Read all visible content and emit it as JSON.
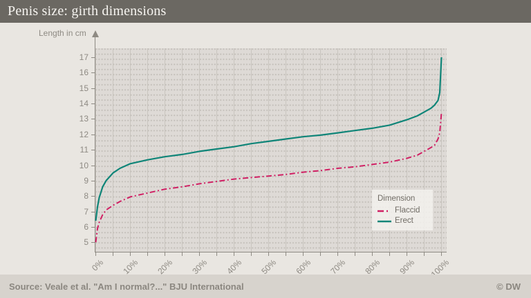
{
  "title": "Penis size: girth dimensions",
  "axes": {
    "y_label": "Length in cm",
    "y_ticks": [
      "17",
      "16",
      "15",
      "14",
      "13",
      "12",
      "11",
      "10",
      "9",
      "8",
      "7",
      "6",
      "5"
    ],
    "x_ticks": [
      "0%",
      "10%",
      "20%",
      "30%",
      "40%",
      "50%",
      "60%",
      "70%",
      "80%",
      "90%",
      "100%"
    ]
  },
  "legend": {
    "title": "Dimension",
    "items": [
      {
        "label": "Flaccid",
        "color": "#d01f63",
        "style": "dash-dot"
      },
      {
        "label": "Erect",
        "color": "#0f8578",
        "style": "solid"
      }
    ]
  },
  "footer": {
    "source": "Source: Veale et al. \"Am I normal?...\" BJU International",
    "credit": "© DW"
  },
  "colors": {
    "title_bar": "#6b6862",
    "page_bg": "#e9e6e1",
    "plot_bg": "#dedad6",
    "footer_bg": "#d7d3cd",
    "axis": "#8e8a83",
    "flaccid": "#d01f63",
    "erect": "#0f8578"
  },
  "chart_data": {
    "type": "line",
    "title": "Penis size: girth dimensions",
    "xlabel": "",
    "ylabel": "Length in cm",
    "x_unit": "%",
    "xlim": [
      0,
      100
    ],
    "ylim": [
      5,
      17
    ],
    "grid": true,
    "legend_position": "right-center",
    "x": [
      0,
      0.5,
      1,
      2,
      3,
      5,
      7,
      10,
      15,
      20,
      25,
      30,
      35,
      40,
      45,
      50,
      55,
      60,
      65,
      70,
      75,
      80,
      85,
      90,
      93,
      95,
      97,
      98,
      99,
      99.5,
      100
    ],
    "series": [
      {
        "name": "Flaccid",
        "color": "#d01f63",
        "style": "dash-dot",
        "values": [
          5.0,
          5.9,
          6.3,
          6.8,
          7.1,
          7.4,
          7.65,
          7.95,
          8.2,
          8.45,
          8.6,
          8.8,
          8.95,
          9.1,
          9.2,
          9.3,
          9.4,
          9.55,
          9.65,
          9.8,
          9.9,
          10.05,
          10.2,
          10.45,
          10.65,
          10.9,
          11.15,
          11.3,
          11.7,
          12.1,
          13.4
        ]
      },
      {
        "name": "Erect",
        "color": "#0f8578",
        "style": "solid",
        "values": [
          6.4,
          7.3,
          7.9,
          8.6,
          9.0,
          9.5,
          9.8,
          10.1,
          10.35,
          10.55,
          10.7,
          10.9,
          11.05,
          11.2,
          11.4,
          11.55,
          11.7,
          11.85,
          11.95,
          12.1,
          12.25,
          12.4,
          12.6,
          12.95,
          13.2,
          13.45,
          13.7,
          13.9,
          14.2,
          14.7,
          17.0
        ]
      }
    ]
  }
}
